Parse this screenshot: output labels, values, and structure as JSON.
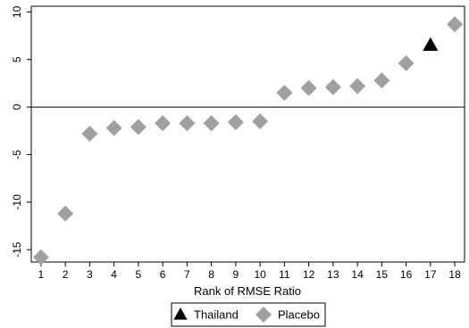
{
  "chart_data": {
    "type": "scatter",
    "xlabel": "Rank of RMSE Ratio",
    "ylabel": "",
    "xlim": [
      0.6,
      18.4
    ],
    "ylim": [
      -16.3,
      10.6
    ],
    "x_ticks": [
      1,
      2,
      3,
      4,
      5,
      6,
      7,
      8,
      9,
      10,
      11,
      12,
      13,
      14,
      15,
      16,
      17,
      18
    ],
    "y_ticks": [
      10,
      5,
      0,
      -5,
      -10,
      -15
    ],
    "reference_line_y": 0,
    "grid": false,
    "legend_position": "bottom-center",
    "series": [
      {
        "name": "Thailand",
        "marker": "triangle",
        "color": "#000000",
        "points": [
          {
            "x": 17,
            "y": 6.5
          }
        ]
      },
      {
        "name": "Placebo",
        "marker": "diamond",
        "color": "#a0a0a0",
        "points": [
          {
            "x": 1,
            "y": -15.8
          },
          {
            "x": 2,
            "y": -11.2
          },
          {
            "x": 3,
            "y": -2.8
          },
          {
            "x": 4,
            "y": -2.2
          },
          {
            "x": 5,
            "y": -2.1
          },
          {
            "x": 6,
            "y": -1.7
          },
          {
            "x": 7,
            "y": -1.7
          },
          {
            "x": 8,
            "y": -1.7
          },
          {
            "x": 9,
            "y": -1.6
          },
          {
            "x": 10,
            "y": -1.5
          },
          {
            "x": 11,
            "y": 1.5
          },
          {
            "x": 12,
            "y": 2.0
          },
          {
            "x": 13,
            "y": 2.1
          },
          {
            "x": 14,
            "y": 2.2
          },
          {
            "x": 15,
            "y": 2.8
          },
          {
            "x": 16,
            "y": 4.6
          },
          {
            "x": 18,
            "y": 8.7
          }
        ]
      }
    ]
  }
}
